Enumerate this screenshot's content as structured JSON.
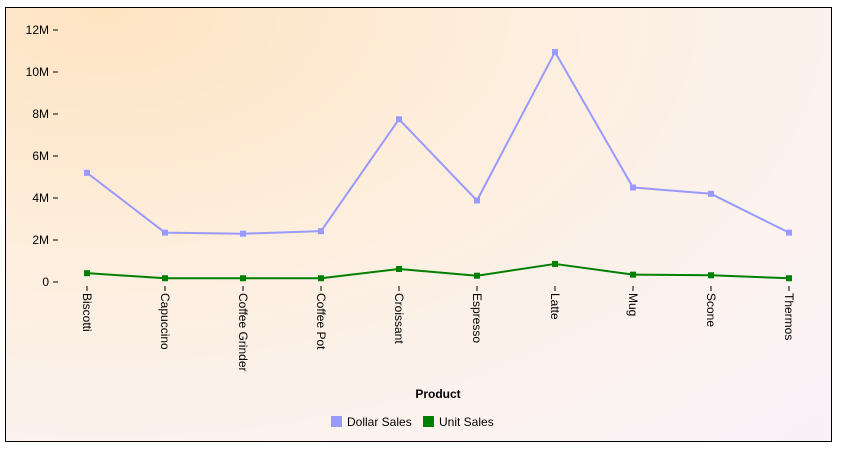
{
  "chart_data": {
    "type": "line",
    "categories": [
      "Biscotti",
      "Capuccino",
      "Coffee Grinder",
      "Coffee Pot",
      "Croissant",
      "Espresso",
      "Latte",
      "Mug",
      "Scone",
      "Thermos"
    ],
    "series": [
      {
        "name": "Dollar Sales",
        "color": "#9999ff",
        "values": [
          5200000,
          2350000,
          2300000,
          2420000,
          7750000,
          3880000,
          10950000,
          4500000,
          4200000,
          2350000
        ]
      },
      {
        "name": "Unit Sales",
        "color": "#008000",
        "values": [
          420000,
          180000,
          180000,
          180000,
          620000,
          300000,
          860000,
          350000,
          320000,
          180000
        ]
      }
    ],
    "xlabel": "Product",
    "ylim": [
      0,
      12000000
    ],
    "yticks": [
      0,
      2000000,
      4000000,
      6000000,
      8000000,
      10000000,
      12000000
    ],
    "ytick_labels": [
      "0",
      "2M",
      "4M",
      "6M",
      "8M",
      "10M",
      "12M"
    ],
    "grid": false,
    "legend": "bottom-center"
  }
}
